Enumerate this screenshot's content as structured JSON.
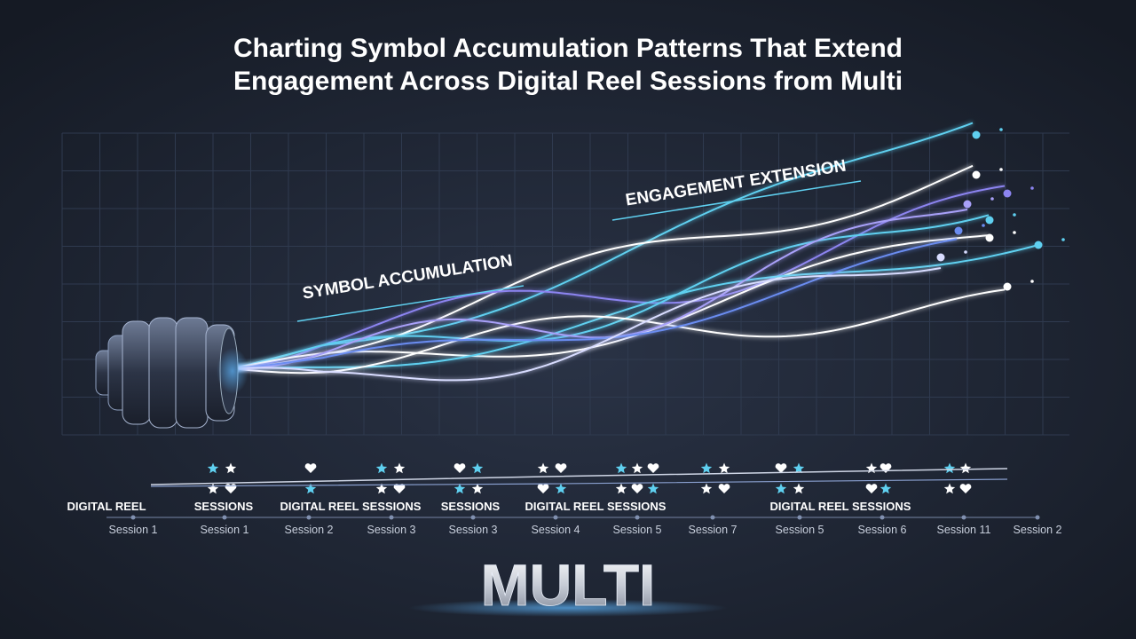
{
  "title": "Charting Symbol Accumulation Patterns That Extend Engagement Across Digital Reel Sessions from Multi",
  "annotations": [
    "SYMBOL ACCUMULATION",
    "ENGAGEMENT EXTENSION"
  ],
  "group_labels": [
    "DIGITAL REEL",
    "SESSIONS",
    "DIGITAL REEL SESSIONS",
    "SESSIONS",
    "DIGITAL REEL SESSIONS",
    "DIGITAL REEL SESSIONS"
  ],
  "session_labels": [
    "Session 1",
    "Session 1",
    "Session 2",
    "Session 3",
    "Session 3",
    "Session 4",
    "Session 5",
    "Session 7",
    "Session 5",
    "Session 6",
    "Session 11",
    "Session 2"
  ],
  "brand": "MULTI"
}
